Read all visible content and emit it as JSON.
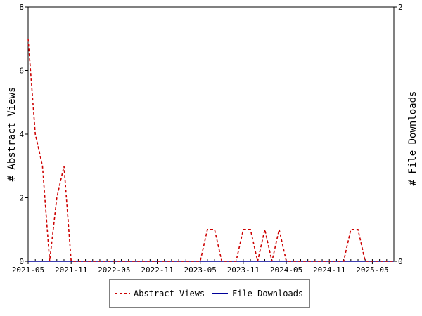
{
  "chart_data": {
    "type": "line",
    "x_tick_labels": [
      "2021-05",
      "2021-11",
      "2022-05",
      "2022-11",
      "2023-05",
      "2023-11",
      "2024-05",
      "2024-11",
      "2025-05"
    ],
    "y_left": {
      "label": "# Abstract Views",
      "ylim": [
        0,
        8
      ],
      "ticks": [
        0,
        2,
        4,
        6,
        8
      ]
    },
    "y_right": {
      "label": "# File Downloads",
      "ylim": [
        0,
        2
      ],
      "ticks": [
        0,
        2
      ]
    },
    "months_total": 52,
    "series": [
      {
        "name": "Abstract Views",
        "axis": "left",
        "color": "#cc0000",
        "style": "dashed",
        "values": [
          7,
          4,
          3,
          0,
          2,
          3,
          0,
          0,
          0,
          0,
          0,
          0,
          0,
          0,
          0,
          0,
          0,
          0,
          0,
          0,
          0,
          0,
          0,
          0,
          0,
          1,
          1,
          0,
          0,
          0,
          1,
          1,
          0,
          1,
          0,
          1,
          0,
          0,
          0,
          0,
          0,
          0,
          0,
          0,
          0,
          1,
          1,
          0,
          0,
          0,
          0,
          0
        ]
      },
      {
        "name": "File Downloads",
        "axis": "right",
        "color": "#000099",
        "style": "solid",
        "values": [
          0,
          0,
          0,
          0,
          0,
          0,
          0,
          0,
          0,
          0,
          0,
          0,
          0,
          0,
          0,
          0,
          0,
          0,
          0,
          0,
          0,
          0,
          0,
          0,
          0,
          0,
          0,
          0,
          0,
          0,
          0,
          0,
          0,
          0,
          0,
          0,
          0,
          0,
          0,
          0,
          0,
          0,
          0,
          0,
          0,
          0,
          0,
          0,
          0,
          0,
          0,
          0
        ]
      }
    ],
    "legend_position": "bottom"
  }
}
